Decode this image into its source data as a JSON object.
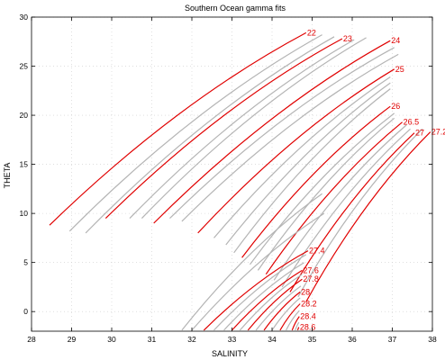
{
  "chart_data": {
    "type": "line",
    "title": "Southern Ocean gamma fits",
    "xlabel": "SALINITY",
    "ylabel": "THETA",
    "xlim": [
      28,
      38
    ],
    "ylim": [
      -2,
      30
    ],
    "xticks": [
      28,
      29,
      30,
      31,
      32,
      33,
      34,
      35,
      36,
      37,
      38
    ],
    "yticks": [
      0,
      5,
      10,
      15,
      20,
      25,
      30
    ],
    "grid": true,
    "colors": {
      "labeled": "#e00000",
      "unlabeled": "#b4b4b4",
      "axes": "#000000",
      "grid": "#cccccc"
    },
    "curves": [
      {
        "label": "22",
        "labeled": true,
        "x": [
          28.45,
          34.85
        ],
        "y": [
          8.8,
          28.4
        ]
      },
      {
        "label": "",
        "labeled": false,
        "x": [
          28.95,
          35.25
        ],
        "y": [
          8.2,
          28.2
        ]
      },
      {
        "label": "",
        "labeled": false,
        "x": [
          29.35,
          35.55
        ],
        "y": [
          8.0,
          28.0
        ]
      },
      {
        "label": "23",
        "labeled": true,
        "x": [
          29.85,
          35.75
        ],
        "y": [
          9.5,
          27.8
        ]
      },
      {
        "label": "",
        "labeled": false,
        "x": [
          30.45,
          36.05
        ],
        "y": [
          9.5,
          27.7
        ]
      },
      {
        "label": "",
        "labeled": false,
        "x": [
          30.75,
          36.35
        ],
        "y": [
          9.5,
          27.9
        ]
      },
      {
        "label": "24",
        "labeled": true,
        "x": [
          31.05,
          36.95
        ],
        "y": [
          9.0,
          27.6
        ]
      },
      {
        "label": "",
        "labeled": false,
        "x": [
          31.45,
          37.05
        ],
        "y": [
          9.5,
          26.9
        ]
      },
      {
        "label": "",
        "labeled": false,
        "x": [
          31.75,
          37.15
        ],
        "y": [
          9.2,
          26.2
        ]
      },
      {
        "label": "25",
        "labeled": true,
        "x": [
          32.15,
          37.05
        ],
        "y": [
          8.0,
          24.7
        ]
      },
      {
        "label": "",
        "labeled": false,
        "x": [
          32.55,
          36.95
        ],
        "y": [
          7.5,
          23.9
        ]
      },
      {
        "label": "",
        "labeled": false,
        "x": [
          32.85,
          36.95
        ],
        "y": [
          6.8,
          23.3
        ]
      },
      {
        "label": "",
        "labeled": false,
        "x": [
          33.05,
          36.95
        ],
        "y": [
          6.0,
          22.7
        ]
      },
      {
        "label": "26",
        "labeled": true,
        "x": [
          33.25,
          36.95
        ],
        "y": [
          5.5,
          20.9
        ]
      },
      {
        "label": "",
        "labeled": false,
        "x": [
          33.45,
          37.05
        ],
        "y": [
          4.8,
          20.2
        ]
      },
      {
        "label": "",
        "labeled": false,
        "x": [
          33.65,
          37.05
        ],
        "y": [
          4.2,
          19.7
        ]
      },
      {
        "label": "26.5",
        "labeled": true,
        "x": [
          33.85,
          37.25
        ],
        "y": [
          3.8,
          19.3
        ]
      },
      {
        "label": "",
        "labeled": false,
        "x": [
          34.05,
          37.35
        ],
        "y": [
          3.2,
          19.0
        ]
      },
      {
        "label": "",
        "labeled": false,
        "x": [
          34.25,
          37.45
        ],
        "y": [
          2.5,
          18.6
        ]
      },
      {
        "label": "27",
        "labeled": true,
        "x": [
          34.45,
          37.55
        ],
        "y": [
          2.0,
          18.2
        ]
      },
      {
        "label": "",
        "labeled": false,
        "x": [
          34.65,
          37.75
        ],
        "y": [
          1.5,
          18.6
        ]
      },
      {
        "label": "27.2",
        "labeled": true,
        "x": [
          34.85,
          37.95
        ],
        "y": [
          1.0,
          18.3
        ]
      },
      {
        "label": "",
        "labeled": false,
        "x": [
          31.75,
          35.25
        ],
        "y": [
          -1.9,
          12.0
        ]
      },
      {
        "label": "",
        "labeled": false,
        "x": [
          32.0,
          35.3
        ],
        "y": [
          -1.9,
          10.0
        ]
      },
      {
        "label": "27.4",
        "labeled": true,
        "x": [
          32.3,
          34.9
        ],
        "y": [
          -1.9,
          6.2
        ]
      },
      {
        "label": "",
        "labeled": false,
        "x": [
          32.55,
          34.85
        ],
        "y": [
          -1.9,
          5.8
        ]
      },
      {
        "label": "",
        "labeled": false,
        "x": [
          32.8,
          34.8
        ],
        "y": [
          -1.9,
          5.0
        ]
      },
      {
        "label": "27.6",
        "labeled": true,
        "x": [
          33.0,
          34.75
        ],
        "y": [
          -1.9,
          4.2
        ]
      },
      {
        "label": "",
        "labeled": false,
        "x": [
          33.2,
          34.75
        ],
        "y": [
          -1.9,
          3.8
        ]
      },
      {
        "label": "27.8",
        "labeled": true,
        "x": [
          33.4,
          34.75
        ],
        "y": [
          -1.9,
          3.3
        ]
      },
      {
        "label": "",
        "labeled": false,
        "x": [
          33.6,
          34.72
        ],
        "y": [
          -1.9,
          2.6
        ]
      },
      {
        "label": "28",
        "labeled": true,
        "x": [
          33.8,
          34.7
        ],
        "y": [
          -1.9,
          2.0
        ]
      },
      {
        "label": "",
        "labeled": false,
        "x": [
          34.0,
          34.7
        ],
        "y": [
          -1.9,
          1.4
        ]
      },
      {
        "label": "28.2",
        "labeled": true,
        "x": [
          34.2,
          34.7
        ],
        "y": [
          -1.9,
          0.8
        ]
      },
      {
        "label": "",
        "labeled": false,
        "x": [
          34.35,
          34.68
        ],
        "y": [
          -1.9,
          0.1
        ]
      },
      {
        "label": "28.4",
        "labeled": true,
        "x": [
          34.5,
          34.68
        ],
        "y": [
          -1.9,
          -0.5
        ]
      },
      {
        "label": "",
        "labeled": false,
        "x": [
          34.58,
          34.67
        ],
        "y": [
          -1.9,
          -1.1
        ]
      },
      {
        "label": "28.6",
        "labeled": true,
        "x": [
          34.64,
          34.67
        ],
        "y": [
          -1.9,
          -1.6
        ]
      }
    ]
  }
}
